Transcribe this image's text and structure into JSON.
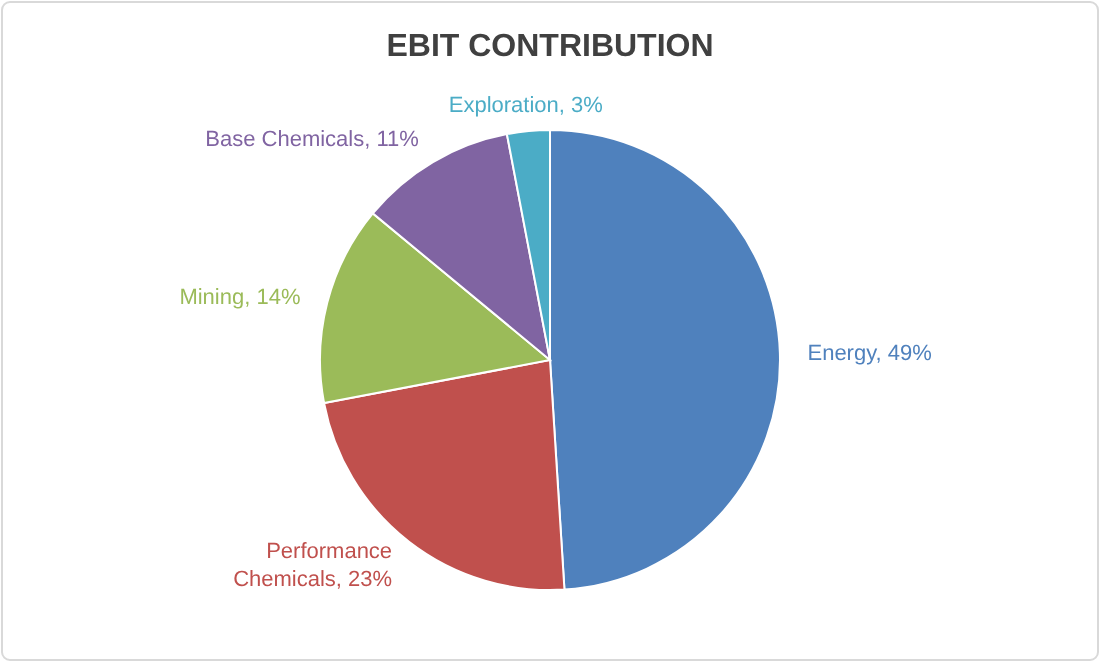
{
  "chart_data": {
    "type": "pie",
    "title": "EBIT CONTRIBUTION",
    "categories": [
      "Energy",
      "Performance Chemicals",
      "Mining",
      "Base Chemicals",
      "Exploration"
    ],
    "values": [
      49,
      23,
      14,
      11,
      3
    ],
    "value_labels": [
      "49%",
      "23%",
      "14%",
      "11%",
      "3%"
    ],
    "colors": [
      "#4f81bd",
      "#c0504d",
      "#9bbb59",
      "#8064a2",
      "#4bacc6"
    ],
    "data_labels": true
  }
}
